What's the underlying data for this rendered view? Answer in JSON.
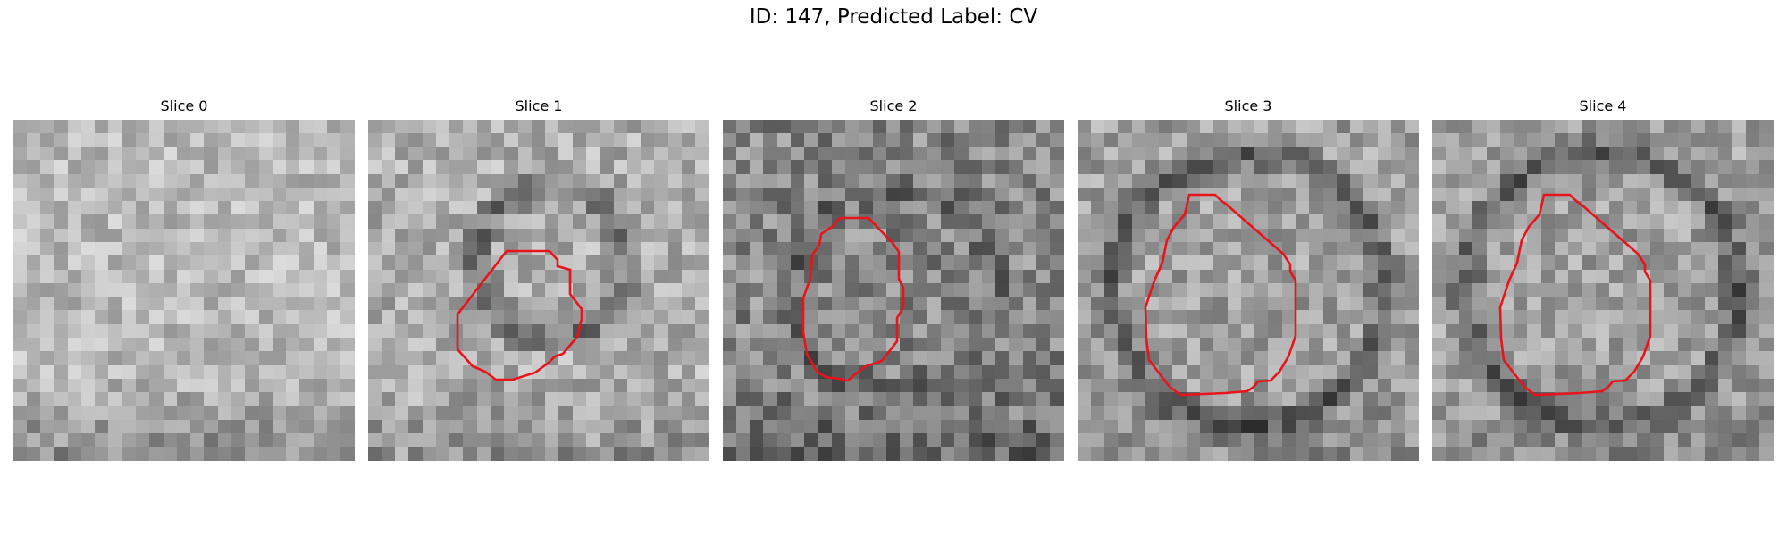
{
  "figure": {
    "title": "ID: 147, Predicted Label: CV"
  },
  "panels": [
    {
      "title": "Slice 0",
      "has_contour": false
    },
    {
      "title": "Slice 1",
      "has_contour": true
    },
    {
      "title": "Slice 2",
      "has_contour": true
    },
    {
      "title": "Slice 3",
      "has_contour": true
    },
    {
      "title": "Slice 4",
      "has_contour": true
    }
  ],
  "colors": {
    "contour": "#e8141b",
    "background": "#ffffff"
  }
}
